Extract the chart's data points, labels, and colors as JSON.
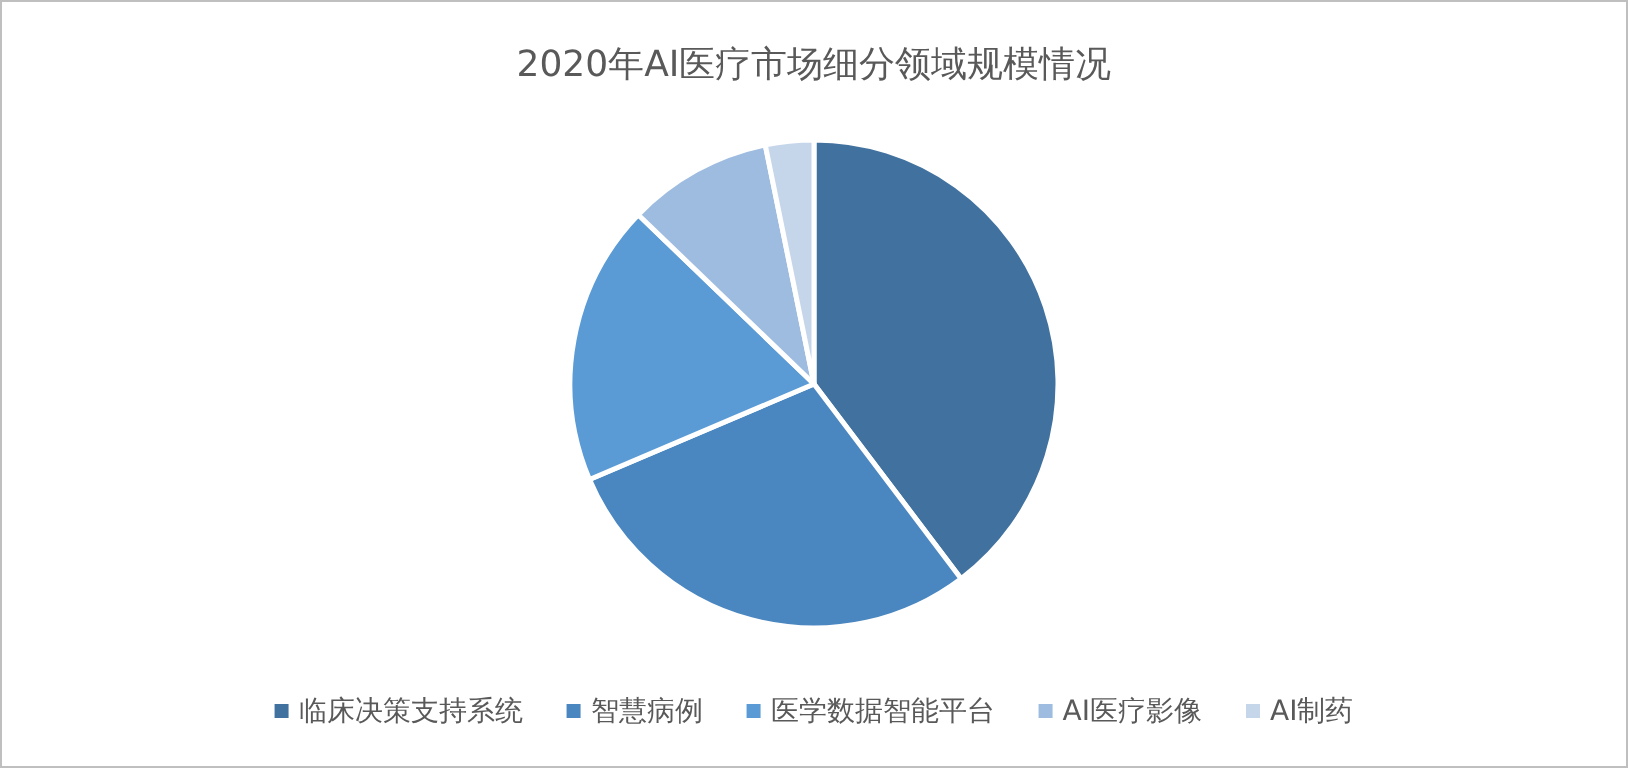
{
  "chart_data": {
    "type": "pie",
    "title": "2020年AI医疗市场细分领域规模情况",
    "categories": [
      "临床决策支持系统",
      "智慧病例",
      "医学数据智能平台",
      "AI医疗影像",
      "AI制药"
    ],
    "values": [
      39.7,
      28.9,
      18.6,
      9.6,
      3.2
    ],
    "colors": [
      "#41729f",
      "#4a86c0",
      "#5b9bd5",
      "#9dbce0",
      "#c5d5ea"
    ],
    "legend": "bottom"
  }
}
